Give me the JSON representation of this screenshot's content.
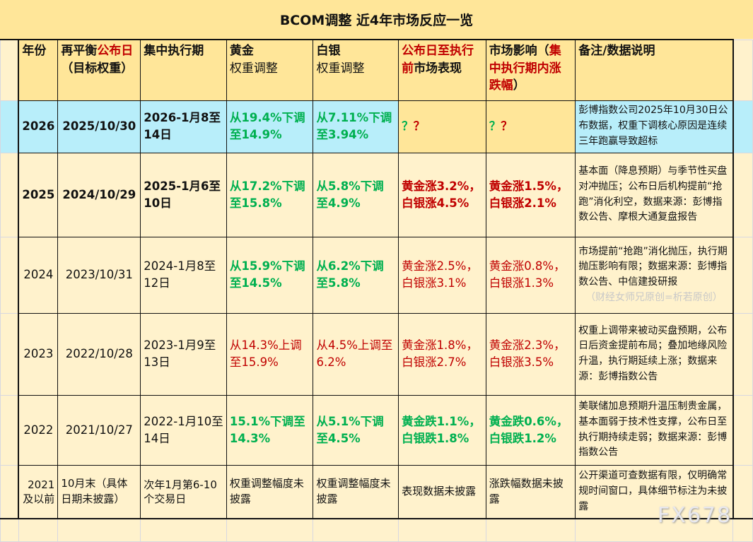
{
  "title": "BCOM调整 近4年市场反应一览",
  "colors": {
    "header_bg": "#ffe699",
    "body_bg": "#fff2cc",
    "highlight_bg": "#b8eefa",
    "up_red": "#c00000",
    "down_green": "#00b050"
  },
  "headers": {
    "year": "年份",
    "announce_a": "再平衡",
    "announce_b": "公布日",
    "announce_c": "（目标权重）",
    "exec": "集中执行期",
    "gold_a": "黄金",
    "gold_b": "权重调整",
    "silver_a": "白银",
    "silver_b": "权重调整",
    "pre_a": "公布日至执行前",
    "pre_b": "市场表现",
    "impact_a": "市场影响（",
    "impact_b": "集中执行期内涨跌幅",
    "impact_c": "）",
    "notes": "备注/数据说明"
  },
  "rows": [
    {
      "year": "2026",
      "announce": "2025/10/30",
      "exec": "2026-1月8至14日",
      "gold": "从19.4%下调至14.9%",
      "silver": "从7.11%下调至3.94%",
      "pre_q1": "？",
      "pre_q2": "？",
      "impact_q1": "？",
      "impact_q2": "？",
      "notes": "彭博指数公司2025年10月30日公布数据，权重下调核心原因是连续三年跑赢导致超标"
    },
    {
      "year": "2025",
      "announce": "2024/10/29",
      "exec": "2025-1月6至10日",
      "gold": "从17.2%下调至15.8%",
      "silver": "从5.8%下调至4.9%",
      "pre": "黄金涨3.2%，白银涨4.5%",
      "impact": "黄金涨1.5%，白银涨2.1%",
      "notes": "基本面（降息预期）与季节性买盘对冲抛压；公布日后机构提前“抢跑”消化利空，数据来源：彭博指数公告、摩根大通复盘报告"
    },
    {
      "year": "2024",
      "announce": "2023/10/31",
      "exec": "2024-1月8至12日",
      "gold": "从15.9%下调至14.5%",
      "silver": "从6.2%下调至5.8%",
      "pre": "黄金涨2.5%，白银涨3.1%",
      "impact": "黄金涨0.8%，白银涨1.3%",
      "notes": "市场提前“抢跑”消化抛压，执行期抛压影响有限；数据来源：彭博指数公告、中信建投研报",
      "watermark": "（财经女师兄原创=析若原创）"
    },
    {
      "year": "2023",
      "announce": "2022/10/28",
      "exec": "2023-1月9至13日",
      "gold": "从14.3%上调至15.9%",
      "silver": "从4.5%上调至6.2%",
      "pre": "黄金涨1.8%，白银涨2.7%",
      "impact": "黄金涨2.3%，白银涨3.5%",
      "notes": "权重上调带来被动买盘预期，公布日后资金提前布局；叠加地缘风险升温，执行期延续上涨；数据来源：彭博指数公告"
    },
    {
      "year": "2022",
      "announce": "2021/10/27",
      "exec": "2022-1月10至14日",
      "gold": "15.1%下调至14.3%",
      "silver": "从5.1%下调至4.5%",
      "pre": "黄金跌1.1%，白银跌1.8%",
      "impact": "黄金跌0.6%，白银跌1.2%",
      "notes": "美联储加息预期升温压制贵金属，基本面弱于技术性支撑，公布日至执行期持续走弱；数据来源：彭博指数公告"
    },
    {
      "year": "2021及以前",
      "announce": "10月末（具体日期未披露）",
      "exec": "次年1月第6-10个交易日",
      "gold": "权重调整幅度未披露",
      "silver": "权重调整幅度未披露",
      "pre": "表现数据未披露",
      "impact": "涨跌幅数据未披露",
      "notes": "公开渠道可查数据有限，仅明确常规时间窗口，具体细节标注为未披露"
    }
  ],
  "watermark_logo": "FX678"
}
